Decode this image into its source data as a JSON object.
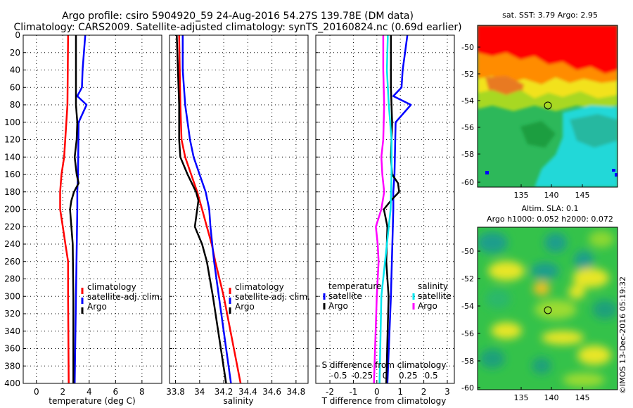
{
  "header": {
    "line1": "Argo profile: csiro 5904920_59 24-Aug-2016 54.27S 139.78E (DM data)",
    "line2": "Climatology: CARS2009. Satellite-adjusted climatology: synTS_20160824.nc (0.69d earlier)"
  },
  "chart_data": [
    {
      "type": "line",
      "name": "temperature-panel",
      "xlabel": "temperature (deg C)",
      "ylabel": "",
      "xlim": [
        -1,
        9.5
      ],
      "ylim": [
        400,
        0
      ],
      "xticks": [
        0,
        2,
        4,
        6,
        8
      ],
      "xtick_labels": [
        "0",
        "2",
        "4",
        "6",
        "8"
      ],
      "yticks": [
        0,
        20,
        40,
        60,
        80,
        100,
        120,
        140,
        160,
        180,
        200,
        220,
        240,
        260,
        280,
        300,
        320,
        340,
        360,
        380,
        400
      ],
      "ytick_labels": [
        "0",
        "20",
        "40",
        "60",
        "80",
        "100",
        "120",
        "140",
        "160",
        "180",
        "200",
        "220",
        "240",
        "260",
        "280",
        "300",
        "320",
        "340",
        "360",
        "380",
        "400"
      ],
      "legend": [
        "climatology",
        "satellite-adj. clim.",
        "Argo"
      ],
      "series": [
        {
          "name": "climatology",
          "color": "#ff0000",
          "depth": [
            0,
            80,
            140,
            160,
            180,
            200,
            220,
            240,
            260,
            300,
            400
          ],
          "values": [
            2.4,
            2.35,
            2.1,
            1.9,
            1.8,
            1.8,
            2.0,
            2.2,
            2.4,
            2.4,
            2.45
          ]
        },
        {
          "name": "satellite-adj. clim.",
          "color": "#0000ff",
          "depth": [
            0,
            20,
            40,
            60,
            70,
            80,
            100,
            160,
            180,
            200,
            300,
            400
          ],
          "values": [
            3.7,
            3.6,
            3.5,
            3.45,
            3.1,
            3.8,
            3.2,
            3.15,
            3.1,
            3.1,
            3.0,
            2.9
          ]
        },
        {
          "name": "Argo",
          "color": "#000000",
          "depth": [
            0,
            30,
            60,
            80,
            100,
            120,
            140,
            160,
            170,
            180,
            190,
            200,
            210,
            240,
            300,
            400
          ],
          "values": [
            3.0,
            3.0,
            3.0,
            3.0,
            3.1,
            3.05,
            2.9,
            3.05,
            3.2,
            2.85,
            2.65,
            2.55,
            2.6,
            2.75,
            2.8,
            2.8
          ]
        }
      ]
    },
    {
      "type": "line",
      "name": "salinity-panel",
      "xlabel": "salinity",
      "xlim": [
        33.75,
        34.9
      ],
      "ylim": [
        400,
        0
      ],
      "xticks": [
        33.8,
        34,
        34.2,
        34.4,
        34.6,
        34.8
      ],
      "xtick_labels": [
        "33.8",
        "34",
        "34.2",
        "34.4",
        "34.6",
        "34.8"
      ],
      "legend": [
        "climatology",
        "satellite-adj. clim.",
        "Argo"
      ],
      "series": [
        {
          "name": "climatology",
          "color": "#ff0000",
          "depth": [
            0,
            80,
            120,
            140,
            160,
            180,
            200,
            220,
            240,
            260,
            300,
            400
          ],
          "values": [
            33.83,
            33.84,
            33.85,
            33.88,
            33.93,
            33.98,
            34.02,
            34.06,
            34.1,
            34.13,
            34.2,
            34.34
          ]
        },
        {
          "name": "satellite-adj. clim.",
          "color": "#0000ff",
          "depth": [
            0,
            40,
            80,
            100,
            120,
            140,
            160,
            180,
            200,
            220,
            260,
            300,
            400
          ],
          "values": [
            33.86,
            33.86,
            33.88,
            33.9,
            33.92,
            33.95,
            34.0,
            34.05,
            34.08,
            34.09,
            34.12,
            34.16,
            34.26
          ]
        },
        {
          "name": "Argo",
          "color": "#000000",
          "depth": [
            0,
            40,
            80,
            120,
            140,
            160,
            180,
            190,
            200,
            220,
            240,
            260,
            300,
            400
          ],
          "values": [
            33.81,
            33.82,
            33.83,
            33.83,
            33.84,
            33.9,
            33.97,
            33.99,
            33.98,
            33.96,
            34.02,
            34.06,
            34.11,
            34.22
          ]
        }
      ]
    },
    {
      "type": "line",
      "name": "difference-panel",
      "xlabel": "T difference from climatology",
      "xlabel_top": "S difference from climatology",
      "xlim": [
        -2.6,
        3.3
      ],
      "ylim": [
        400,
        0
      ],
      "xticks": [
        -2,
        -1,
        0,
        1,
        2,
        3
      ],
      "xtick_labels": [
        "-2",
        "-1",
        "0",
        "1",
        "2",
        "3"
      ],
      "xticks_top": [
        -0.5,
        -0.25,
        0,
        0.25,
        0.5
      ],
      "xtick_labels_top": [
        "-0.5",
        "-0.25",
        "0",
        "0.25",
        "0.5"
      ],
      "legend_left_title": "temperature",
      "legend_left": [
        "satellite",
        "Argo"
      ],
      "legend_right_title": "salinity",
      "legend_right": [
        "satellite",
        "Argo"
      ],
      "series": [
        {
          "name": "temperature satellite",
          "color": "#0000ff",
          "depth": [
            0,
            20,
            40,
            60,
            70,
            80,
            100,
            160,
            180,
            200,
            300,
            400
          ],
          "values": [
            1.3,
            1.2,
            1.1,
            1.05,
            0.7,
            1.45,
            0.8,
            0.75,
            0.7,
            0.7,
            0.6,
            0.45
          ]
        },
        {
          "name": "temperature Argo",
          "color": "#000000",
          "depth": [
            0,
            60,
            100,
            140,
            160,
            170,
            180,
            190,
            200,
            220,
            260,
            300,
            400
          ],
          "values": [
            0.6,
            0.6,
            0.65,
            0.6,
            0.65,
            0.9,
            0.95,
            0.6,
            0.3,
            0.45,
            0.4,
            0.5,
            0.4
          ]
        },
        {
          "name": "salinity satellite",
          "color": "#00e5ee",
          "depth": [
            0,
            40,
            80,
            120,
            160,
            200,
            240,
            300,
            400
          ],
          "values": [
            0.03,
            0.02,
            0.04,
            0.07,
            0.07,
            0.06,
            0.02,
            -0.04,
            -0.06
          ]
        },
        {
          "name": "salinity Argo",
          "color": "#ff00ff",
          "depth": [
            0,
            40,
            80,
            120,
            140,
            160,
            180,
            200,
            220,
            240,
            260,
            300,
            400
          ],
          "values": [
            -0.02,
            -0.02,
            -0.01,
            -0.02,
            -0.04,
            -0.03,
            -0.01,
            -0.04,
            -0.1,
            -0.08,
            -0.07,
            -0.09,
            -0.12
          ]
        }
      ]
    }
  ],
  "maps": {
    "sst_title": "sat. SST: 3.79 Argo: 2.95",
    "sla_title_1": "Altim. SLA: 0.1",
    "sla_title_2": "Argo h1000: 0.052 h2000: 0.072",
    "lon_ticks": [
      "135",
      "140",
      "145"
    ],
    "lat_ticks": [
      "-50",
      "-52",
      "-54",
      "-56",
      "-58",
      "-60"
    ],
    "watermark": "©IMOS 13-Dec-2016 05:19:32"
  }
}
